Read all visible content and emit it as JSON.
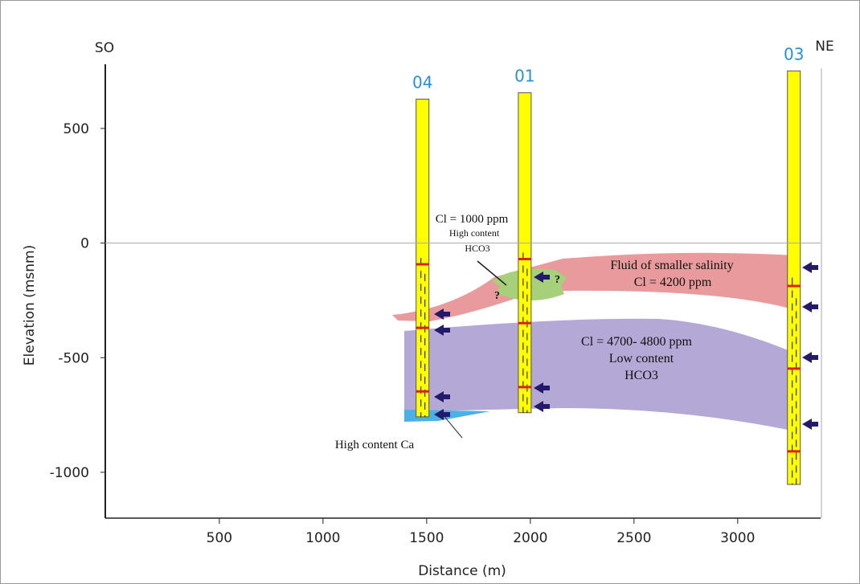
{
  "chart_data": {
    "type": "cross-section",
    "x_label": "Distance (m)",
    "y_label": "Elevation (msnm)",
    "left_label": "SO",
    "right_label": "NE",
    "xlim": [
      -50,
      3400
    ],
    "ylim": [
      -1200,
      780
    ],
    "xticks": [
      500,
      1000,
      1500,
      2000,
      2500,
      3000
    ],
    "yticks": [
      -1000,
      -500,
      0,
      500
    ],
    "well_color": "#ffff00",
    "wells": [
      {
        "name": "04",
        "x": 1480,
        "top": 628,
        "bottom": -758
      },
      {
        "name": "01",
        "x": 1973,
        "top": 656,
        "bottom": -740
      },
      {
        "name": "03",
        "x": 3271,
        "top": 751,
        "bottom": -1053
      }
    ],
    "annotations": {
      "green_zone": [
        "Cl = 1000 ppm",
        "High content",
        "HCO3"
      ],
      "red_zone": [
        "Fluid of smaller salinity",
        "Cl = 4200 ppm"
      ],
      "purple_zone": [
        "Cl = 4700- 4800 ppm",
        "Low content",
        "HCO3"
      ],
      "blue_zone": "High content Ca",
      "question": "?"
    }
  }
}
